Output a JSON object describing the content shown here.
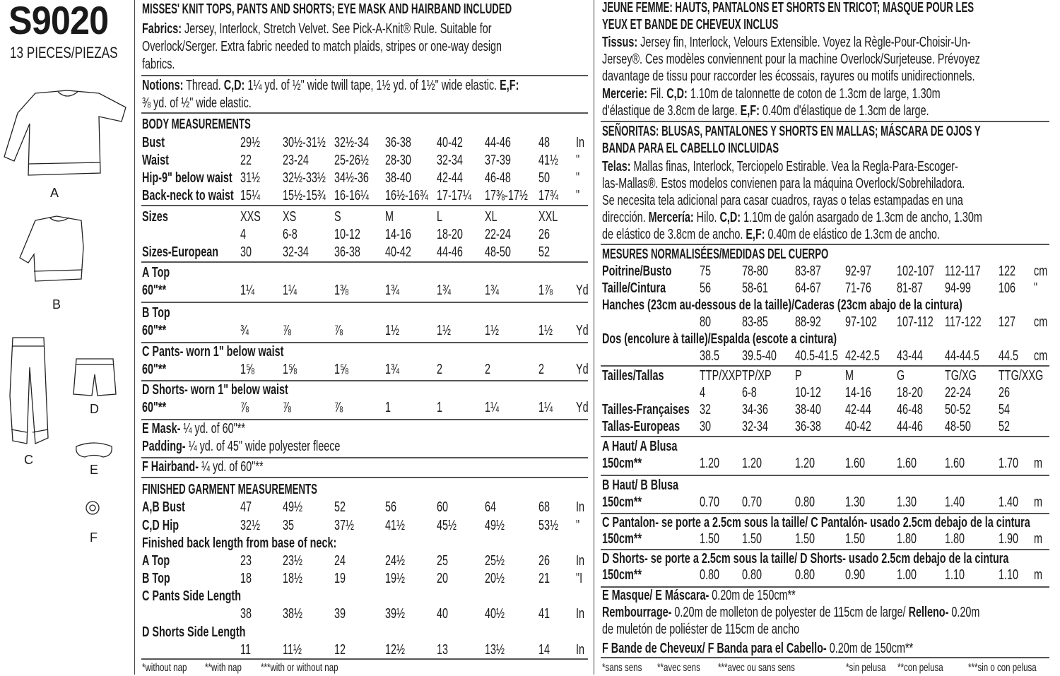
{
  "left": {
    "code": "S9020",
    "pieces": "13 PIECES/PIEZAS",
    "view_labels": [
      "A",
      "B",
      "C",
      "D",
      "E",
      "F"
    ]
  },
  "en": {
    "title": [
      [
        [
          "b",
          "MISSES' KNIT TOPS, PANTS AND SHORTS; EYE MASK AND HAIRBAND INCLUDED"
        ]
      ]
    ],
    "fabrics": [
      [
        [
          "b",
          "Fabrics:"
        ],
        [
          "n",
          " Jersey, Interlock, Stretch Velvet. See Pick-A-Knit® Rule. Suitable for"
        ]
      ],
      [
        [
          "n",
          "Overlock/Serger. Extra fabric needed to match plaids, stripes or one-way design"
        ]
      ],
      [
        [
          "n",
          "fabrics."
        ]
      ]
    ],
    "notions": [
      [
        [
          "b",
          "Notions:"
        ],
        [
          "n",
          " Thread. "
        ],
        [
          "b",
          "C,D:"
        ],
        [
          "n",
          " 1¼ yd. of ½\" wide twill tape, 1½ yd. of 1½\" wide elastic. "
        ],
        [
          "b",
          "E,F:"
        ]
      ],
      [
        [
          "n",
          "⅜ yd. of ½\" wide elastic."
        ]
      ]
    ],
    "body_heading": "BODY MEASUREMENTS",
    "body_rows": [
      {
        "label": "Bust",
        "values": [
          "29½",
          "30½-31½",
          "32½-34",
          "36-38",
          "40-42",
          "44-46",
          "48"
        ],
        "unit": "In"
      },
      {
        "label": "Waist",
        "values": [
          "22",
          "23-24",
          "25-26½",
          "28-30",
          "32-34",
          "37-39",
          "41½"
        ],
        "unit": "\""
      },
      {
        "label": "Hip-9\" below waist",
        "values": [
          "31½",
          "32½-33½",
          "34½-36",
          "38-40",
          "42-44",
          "46-48",
          "50"
        ],
        "unit": "\""
      },
      {
        "label": "Back-neck to waist",
        "values": [
          "15¼",
          "15½-15¾",
          "16-16¼",
          "16½-16¾",
          "17-17¼",
          "17⅜-17½",
          "17¾"
        ],
        "unit": "\""
      }
    ],
    "size_rows": [
      {
        "label": "Sizes",
        "values": [
          "XXS",
          "XS",
          "S",
          "M",
          "L",
          "XL",
          "XXL"
        ],
        "unit": ""
      },
      {
        "label": "",
        "values": [
          "4",
          "6-8",
          "10-12",
          "14-16",
          "18-20",
          "22-24",
          "26"
        ],
        "unit": ""
      },
      {
        "label": "Sizes-European",
        "values": [
          "30",
          "32-34",
          "36-38",
          "40-42",
          "44-46",
          "48-50",
          "52"
        ],
        "unit": ""
      }
    ],
    "yardage": [
      {
        "heading": "A Top",
        "row": {
          "label": "60\"**",
          "values": [
            "1¼",
            "1¼",
            "1⅜",
            "1¾",
            "1¾",
            "1¾",
            "1⅞"
          ],
          "unit": "Yd"
        }
      },
      {
        "heading": "B Top",
        "row": {
          "label": "60\"**",
          "values": [
            "¾",
            "⅞",
            "⅞",
            "1½",
            "1½",
            "1½",
            "1½"
          ],
          "unit": "Yd"
        }
      },
      {
        "heading": "C Pants- worn 1\" below waist",
        "row": {
          "label": "60\"**",
          "values": [
            "1⅝",
            "1⅝",
            "1⅝",
            "1¾",
            "2",
            "2",
            "2"
          ],
          "unit": "Yd"
        }
      },
      {
        "heading": "D Shorts- worn 1\" below waist",
        "row": {
          "label": "60\"**",
          "values": [
            "⅞",
            "⅞",
            "⅞",
            "1",
            "1",
            "1¼",
            "1¼"
          ],
          "unit": "Yd"
        }
      }
    ],
    "extras": [
      [
        [
          "b",
          "E Mask-"
        ],
        [
          "n",
          " ¼ yd. of 60\"**"
        ]
      ],
      [
        [
          "b",
          "Padding-"
        ],
        [
          "n",
          " ¼ yd. of 45\" wide polyester fleece"
        ]
      ],
      [
        [
          "b",
          "F Hairband-"
        ],
        [
          "n",
          " ¼ yd. of 60\"**"
        ]
      ]
    ],
    "finished_heading": "FINISHED GARMENT MEASUREMENTS",
    "finished_rows": [
      {
        "label": "A,B Bust",
        "values": [
          "47",
          "49½",
          "52",
          "56",
          "60",
          "64",
          "68"
        ],
        "unit": "In"
      },
      {
        "label": "C,D Hip",
        "values": [
          "32½",
          "35",
          "37½",
          "41½",
          "45½",
          "49½",
          "53½"
        ],
        "unit": "\""
      },
      {
        "label": "Finished back length from base of neck:",
        "values": [],
        "unit": ""
      },
      {
        "label": "A Top",
        "values": [
          "23",
          "23½",
          "24",
          "24½",
          "25",
          "25½",
          "26"
        ],
        "unit": "In"
      },
      {
        "label": "B Top",
        "values": [
          "18",
          "18½",
          "19",
          "19½",
          "20",
          "20½",
          "21"
        ],
        "unit": "\"I"
      },
      {
        "label": "C Pants Side Length",
        "values": [],
        "unit": ""
      },
      {
        "label": "",
        "values": [
          "38",
          "38½",
          "39",
          "39½",
          "40",
          "40½",
          "41"
        ],
        "unit": "In"
      },
      {
        "label": "D Shorts Side Length",
        "values": [],
        "unit": ""
      },
      {
        "label": "",
        "values": [
          "11",
          "11½",
          "12",
          "12½",
          "13",
          "13½",
          "14"
        ],
        "unit": "In"
      }
    ],
    "footnotes": [
      "*without nap",
      "**with nap",
      "***with or without nap"
    ]
  },
  "fr_es": {
    "fr_title": [
      [
        [
          "b",
          "JEUNE FEMME: HAUTS, PANTALONS ET SHORTS EN TRICOT; MASQUE POUR LES"
        ]
      ],
      [
        [
          "b",
          "YEUX ET BANDE DE CHEVEUX INCLUS"
        ]
      ]
    ],
    "fr_text": [
      [
        [
          "b",
          "Tissus:"
        ],
        [
          "n",
          " Jersey fin, Interlock, Velours Extensible. Voyez la Règle-Pour-Choisir-Un-"
        ]
      ],
      [
        [
          "n",
          "Jersey®. Ces modèles conviennent pour la machine Overlock/Surjeteuse. Prévoyez"
        ]
      ],
      [
        [
          "n",
          "davantage de tissu pour raccorder les écossais, rayures ou motifs unidirectionnels."
        ]
      ],
      [
        [
          "b",
          "Mercerie:"
        ],
        [
          "n",
          " Fil. "
        ],
        [
          "b",
          "C,D:"
        ],
        [
          "n",
          " 1.10m de talonnette de coton de 1.3cm de large, 1.30m"
        ]
      ],
      [
        [
          "n",
          "d'élastique de 3.8cm de large. "
        ],
        [
          "b",
          "E,F:"
        ],
        [
          "n",
          " 0.40m d'élastique de 1.3cm de large."
        ]
      ]
    ],
    "es_title": [
      [
        [
          "b",
          "SEÑORITAS: BLUSAS, PANTALONES Y SHORTS EN MALLAS; MÁSCARA DE OJOS Y"
        ]
      ],
      [
        [
          "b",
          "BANDA PARA EL CABELLO INCLUIDAS"
        ]
      ]
    ],
    "es_text": [
      [
        [
          "b",
          "Telas:"
        ],
        [
          "n",
          " Mallas finas, Interlock, Terciopelo Estirable. Vea la Regla-Para-Escoger-"
        ]
      ],
      [
        [
          "n",
          "las-Mallas®. Estos modelos convienen para la máquina Overlock/Sobrehiladora."
        ]
      ],
      [
        [
          "n",
          "Se necesita tela adicional para casar cuadros, rayas o telas estampadas en una"
        ]
      ],
      [
        [
          "n",
          "dirección. "
        ],
        [
          "b",
          "Mercería:"
        ],
        [
          "n",
          " Hilo. "
        ],
        [
          "b",
          "C,D:"
        ],
        [
          "n",
          " 1.10m de galón asargado de 1.3cm de ancho, 1.30m"
        ]
      ],
      [
        [
          "n",
          "de elástico de 3.8cm de ancho. "
        ],
        [
          "b",
          "E,F:"
        ],
        [
          "n",
          " 0.40m de elástico de 1.3cm de ancho."
        ]
      ]
    ],
    "body_heading": "MESURES NORMALISÉES/MEDIDAS DEL CUERPO",
    "body_rows": [
      {
        "label": "Poitrine/Busto",
        "values": [
          "75",
          "78-80",
          "83-87",
          "92-97",
          "102-107",
          "112-117",
          "122"
        ],
        "unit": "cm"
      },
      {
        "label": "Taille/Cintura",
        "values": [
          "56",
          "58-61",
          "64-67",
          "71-76",
          "81-87",
          "94-99",
          "106"
        ],
        "unit": "\""
      },
      {
        "label": "Hanches (23cm au-dessous de la taille)/Caderas (23cm abajo de la cintura)",
        "values": [],
        "unit": ""
      },
      {
        "label": "",
        "values": [
          "80",
          "83-85",
          "88-92",
          "97-102",
          "107-112",
          "117-122",
          "127"
        ],
        "unit": "cm"
      },
      {
        "label": "Dos (encolure à taille)/Espalda (escote a cintura)",
        "values": [],
        "unit": ""
      },
      {
        "label": "",
        "values": [
          "38.5",
          "39.5-40",
          "40.5-41.5",
          "42-42.5",
          "43-44",
          "44-44.5",
          "44.5"
        ],
        "unit": "cm"
      }
    ],
    "size_rows": [
      {
        "label": "Tailles/Tallas",
        "values": [
          "TTP/XXP",
          "TP/XP",
          "P",
          "M",
          "G",
          "TG/XG",
          "TTG/XXG"
        ],
        "unit": ""
      },
      {
        "label": "",
        "values": [
          "4",
          "6-8",
          "10-12",
          "14-16",
          "18-20",
          "22-24",
          "26"
        ],
        "unit": ""
      },
      {
        "label": "Tailles-Françaises",
        "values": [
          "32",
          "34-36",
          "38-40",
          "42-44",
          "46-48",
          "50-52",
          "54"
        ],
        "unit": ""
      },
      {
        "label": "Tallas-Europeas",
        "values": [
          "30",
          "32-34",
          "36-38",
          "40-42",
          "44-46",
          "48-50",
          "52"
        ],
        "unit": ""
      }
    ],
    "yardage": [
      {
        "heading": "A Haut/ A Blusa",
        "row": {
          "label": "150cm**",
          "values": [
            "1.20",
            "1.20",
            "1.20",
            "1.60",
            "1.60",
            "1.60",
            "1.70"
          ],
          "unit": "m"
        }
      },
      {
        "heading": "B Haut/ B Blusa",
        "row": {
          "label": "150cm**",
          "values": [
            "0.70",
            "0.70",
            "0.80",
            "1.30",
            "1.30",
            "1.40",
            "1.40"
          ],
          "unit": "m"
        }
      },
      {
        "heading": "C Pantalon- se porte a 2.5cm sous la taille/ C Pantalón- usado 2.5cm debajo de la cintura",
        "row": {
          "label": "150cm**",
          "values": [
            "1.50",
            "1.50",
            "1.50",
            "1.50",
            "1.80",
            "1.80",
            "1.90"
          ],
          "unit": "m"
        }
      },
      {
        "heading": "D Shorts- se porte a 2.5cm sous la taille/ D Shorts- usado 2.5cm debajo de la cintura",
        "row": {
          "label": "150cm**",
          "values": [
            "0.80",
            "0.80",
            "0.80",
            "0.90",
            "1.00",
            "1.10",
            "1.10"
          ],
          "unit": "m"
        }
      }
    ],
    "extras": [
      [
        [
          "b",
          "E Masque/ E Máscara-"
        ],
        [
          "n",
          " 0.20m de 150cm**"
        ]
      ],
      [
        [
          "b",
          "Rembourrage-"
        ],
        [
          "n",
          " 0.20m de molleton de polyester de 115cm de large/ "
        ],
        [
          "b",
          "Relleno-"
        ],
        [
          "n",
          " 0.20m"
        ]
      ],
      [
        [
          "n",
          "de muletón de poliéster de 115cm de ancho"
        ]
      ],
      [
        [
          "b",
          "F Bande de Cheveux/ F Banda para el Cabello-"
        ],
        [
          "n",
          " 0.20m de 150cm**"
        ]
      ]
    ],
    "footnotes": [
      "*sans sens",
      "**avec sens",
      "***avec ou sans sens",
      "*sin pelusa",
      "**con pelusa",
      "***sin o con pelusa"
    ]
  }
}
